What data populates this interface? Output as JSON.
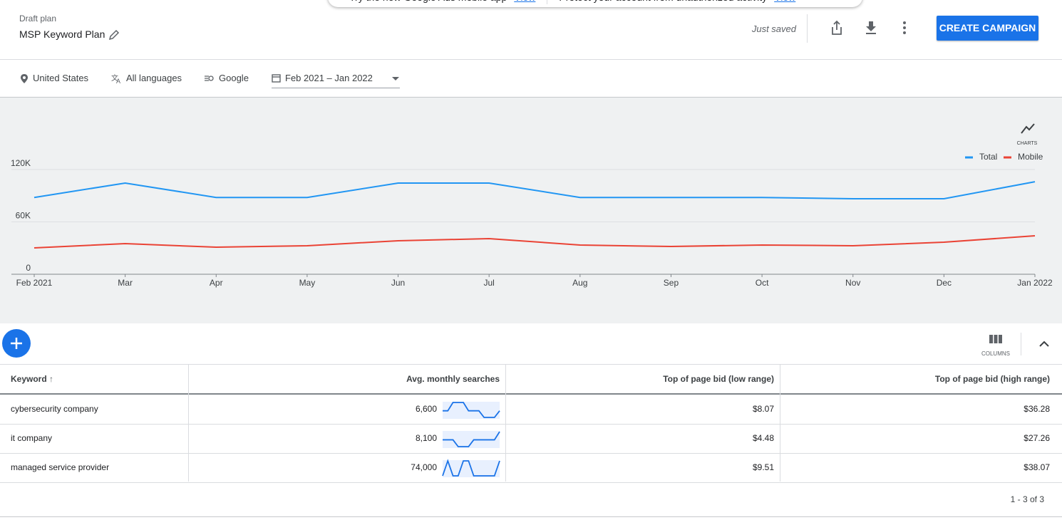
{
  "notification": {
    "items": [
      {
        "text": "Try the new Google Ads mobile app",
        "link": "View"
      },
      {
        "text": "Protect your account from unauthorized activity",
        "link": "View"
      }
    ]
  },
  "header": {
    "label": "Draft plan",
    "title": "MSP Keyword Plan",
    "status": "Just saved",
    "button": "CREATE CAMPAIGN"
  },
  "filters": [
    "United States",
    "All languages",
    "Google",
    "Feb 2021 – Jan 2022"
  ],
  "chart_toggle": "CHARTS",
  "chart_data": {
    "type": "line",
    "categories": [
      "Feb 2021",
      "Mar",
      "Apr",
      "May",
      "Jun",
      "Jul",
      "Aug",
      "Sep",
      "Oct",
      "Nov",
      "Dec",
      "Jan 2022"
    ],
    "series": [
      {
        "name": "Total",
        "color": "#2196f3",
        "values": [
          88000,
          104500,
          88000,
          88000,
          104500,
          104500,
          88000,
          88000,
          88000,
          86500,
          86500,
          106000
        ]
      },
      {
        "name": "Mobile",
        "color": "#ea4335",
        "values": [
          30200,
          35100,
          31000,
          32700,
          38400,
          40800,
          33500,
          31800,
          33500,
          32700,
          36700,
          44100
        ]
      }
    ],
    "ylim": [
      0,
      120000
    ],
    "yticks": [
      0,
      {
        "value": 60000,
        "label": "60K"
      },
      {
        "value": 120000,
        "label": "120K"
      }
    ],
    "grid": true,
    "legend": "top-right"
  },
  "table": {
    "columns_label": "COLUMNS",
    "headers": [
      "Keyword",
      "Avg. monthly searches",
      "Top of page bid (low range)",
      "Top of page bid (high range)"
    ],
    "rows": [
      {
        "keyword": "cybersecurity company",
        "searches": "6,600",
        "trend": [
          6600,
          6600,
          8100,
          8100,
          8100,
          6600,
          6600,
          6600,
          5400,
          5400,
          5400,
          6600
        ],
        "low": "$8.07",
        "high": "$36.28"
      },
      {
        "keyword": "it company",
        "searches": "8,100",
        "trend": [
          8100,
          8100,
          8100,
          6600,
          6600,
          6600,
          8100,
          8100,
          8100,
          8100,
          8100,
          9900
        ],
        "low": "$4.48",
        "high": "$27.26"
      },
      {
        "keyword": "managed service provider",
        "searches": "74,000",
        "trend": [
          60500,
          90500,
          60500,
          60500,
          90500,
          90500,
          60500,
          60500,
          60500,
          60500,
          60500,
          90500
        ],
        "low": "$9.51",
        "high": "$38.07"
      }
    ],
    "pagination": "1 - 3 of 3"
  }
}
